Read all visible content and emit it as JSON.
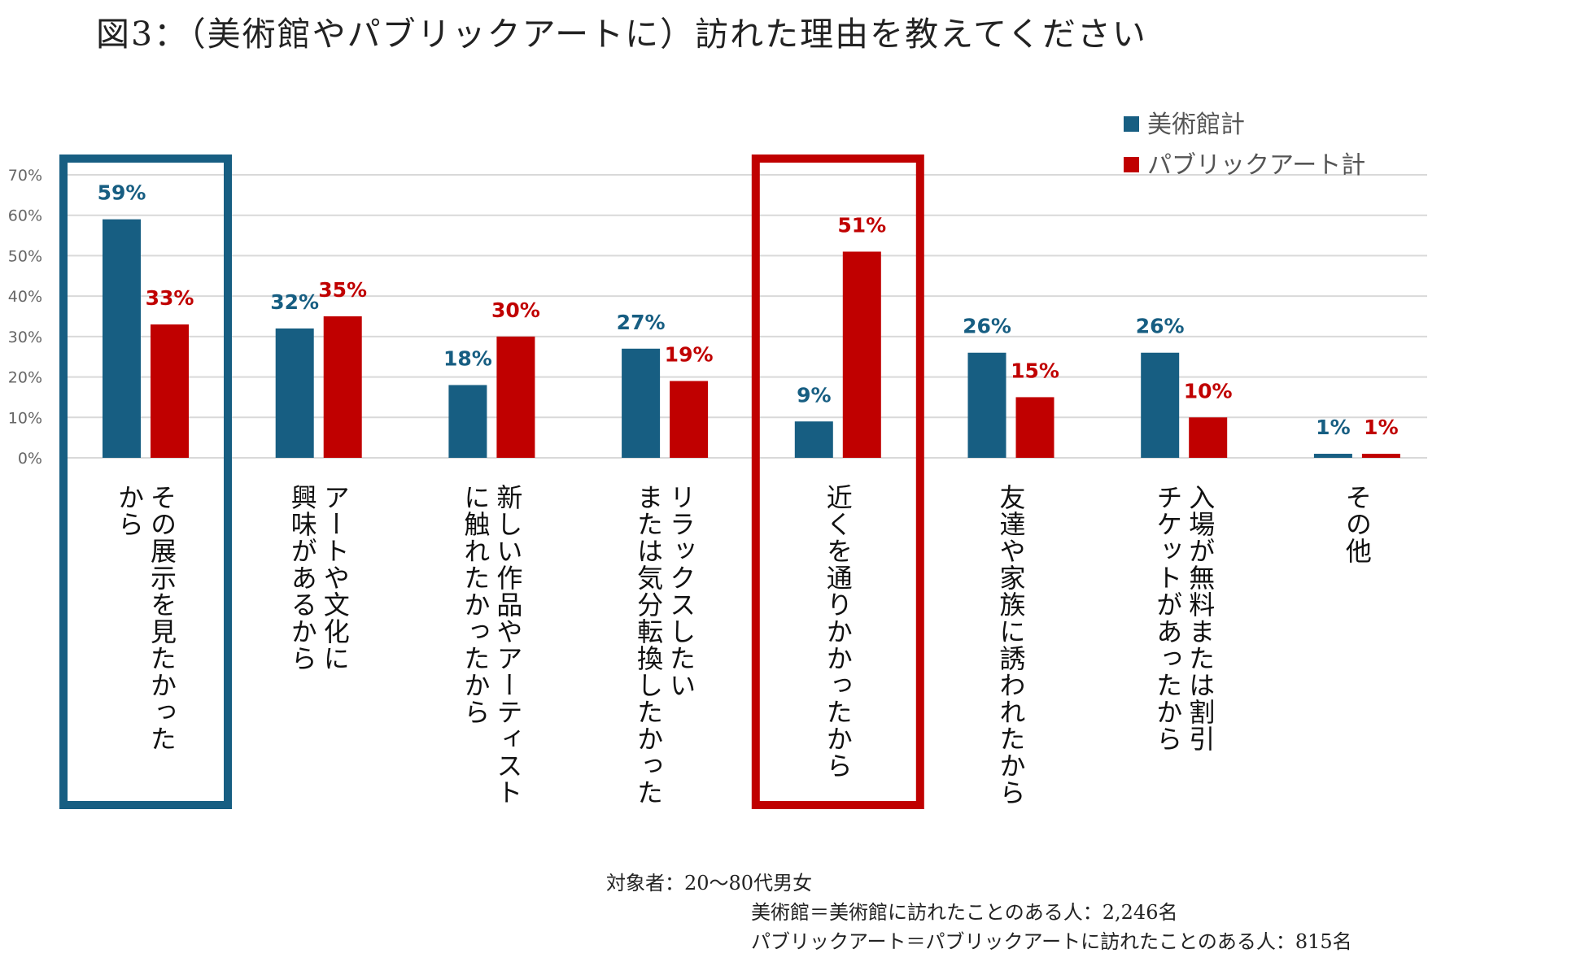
{
  "title": "図3：（美術館やパブリックアートに）訪れた理由を教えてください",
  "colors": {
    "museum": "#175E82",
    "public_art": "#C00000",
    "grid": "#D9D9D9",
    "tick": "#666666"
  },
  "legend": [
    {
      "name": "美術館計",
      "color": "#175E82"
    },
    {
      "name": "パブリックアート計",
      "color": "#C00000"
    }
  ],
  "highlights": [
    {
      "category_index": 0,
      "color": "#175E82"
    },
    {
      "category_index": 4,
      "color": "#C00000"
    }
  ],
  "chart_data": {
    "type": "bar",
    "title": "図3：（美術館やパブリックアートに）訪れた理由を教えてください",
    "xlabel": "",
    "ylabel": "",
    "ylim": [
      0,
      70
    ],
    "yticks": [
      0,
      10,
      20,
      30,
      40,
      50,
      60,
      70
    ],
    "ytick_labels": [
      "0%",
      "10%",
      "20%",
      "30%",
      "40%",
      "50%",
      "60%",
      "70%"
    ],
    "grid": true,
    "legend_position": "top-right",
    "categories": [
      "その展示を見たかった\nから",
      "アートや文化に\n興味があるから",
      "新しい作品やアーティスト\nに触れたかったから",
      "リラックスしたい\nまたは気分転換したかった",
      "近くを通りかかったから",
      "友達や家族に誘われたから",
      "入場が無料または割引\nチケットがあったから",
      "その他"
    ],
    "series": [
      {
        "name": "美術館計",
        "values": [
          59,
          32,
          18,
          27,
          9,
          26,
          26,
          1
        ],
        "labels": [
          "59%",
          "32%",
          "18%",
          "27%",
          "9%",
          "26%",
          "26%",
          "1%"
        ]
      },
      {
        "name": "パブリックアート計",
        "values": [
          33,
          35,
          30,
          19,
          51,
          15,
          10,
          1
        ],
        "labels": [
          "33%",
          "35%",
          "30%",
          "19%",
          "51%",
          "15%",
          "10%",
          "1%"
        ]
      }
    ]
  },
  "category_labels": [
    [
      "その展示を見たかった",
      "から"
    ],
    [
      "アートや文化に",
      "興味があるから"
    ],
    [
      "新しい作品やアーティスト",
      "に触れたかったから"
    ],
    [
      "リラックスしたい",
      "または気分転換したかった"
    ],
    [
      "近くを通りかかったから"
    ],
    [
      "友達や家族に誘われたから"
    ],
    [
      "入場が無料または割引",
      "チケットがあったから"
    ],
    [
      "その他"
    ]
  ],
  "note": {
    "line1": "対象者：20〜80代男女",
    "line2": "美術館＝美術館に訪れたことのある人：2,246名",
    "line3": "パブリックアート＝パブリックアートに訪れたことのある人：815名"
  }
}
